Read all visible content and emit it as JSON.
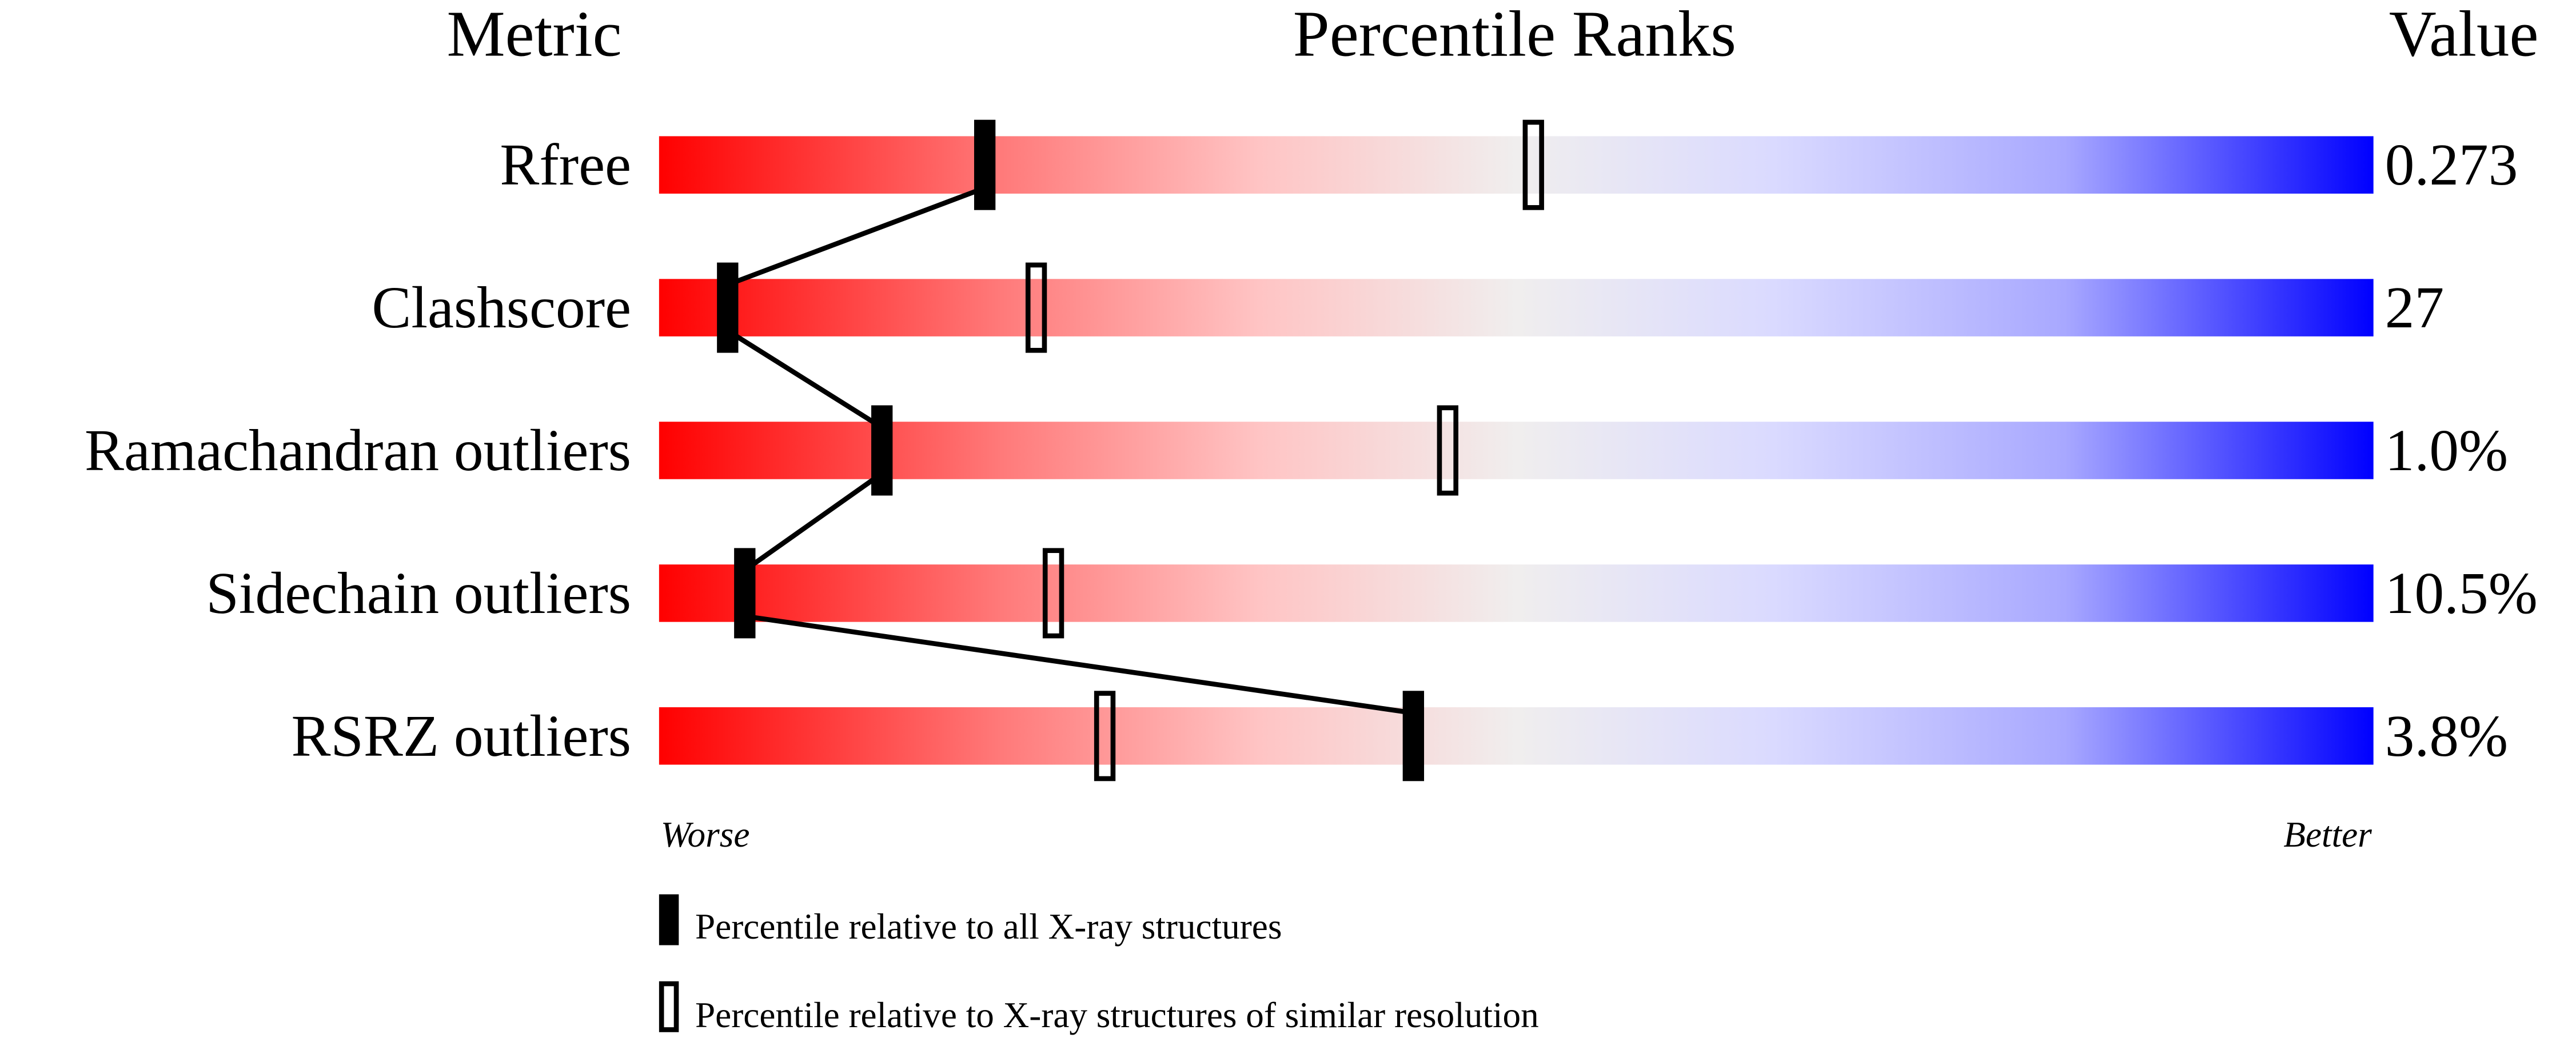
{
  "chart_data": {
    "type": "bar",
    "headers": {
      "metric": "Metric",
      "ranks": "Percentile Ranks",
      "value": "Value"
    },
    "axis": {
      "worse_label": "Worse",
      "better_label": "Better",
      "xlim": [
        0,
        100
      ]
    },
    "metrics": [
      {
        "name": "Rfree",
        "value": "0.273",
        "percentile_all": 19,
        "percentile_similar": 51
      },
      {
        "name": "Clashscore",
        "value": "27",
        "percentile_all": 4,
        "percentile_similar": 22
      },
      {
        "name": "Ramachandran outliers",
        "value": "1.0%",
        "percentile_all": 13,
        "percentile_similar": 46
      },
      {
        "name": "Sidechain outliers",
        "value": "10.5%",
        "percentile_all": 5,
        "percentile_similar": 23
      },
      {
        "name": "RSRZ outliers",
        "value": "3.8%",
        "percentile_all": 44,
        "percentile_similar": 26
      }
    ],
    "legend": {
      "all": "Percentile relative to all X-ray structures",
      "similar": "Percentile relative to X-ray structures of similar resolution"
    },
    "colors": {
      "worse": "#ff0000",
      "middle": "#f0f0f0",
      "better": "#0000ff",
      "marker": "#000000"
    }
  }
}
